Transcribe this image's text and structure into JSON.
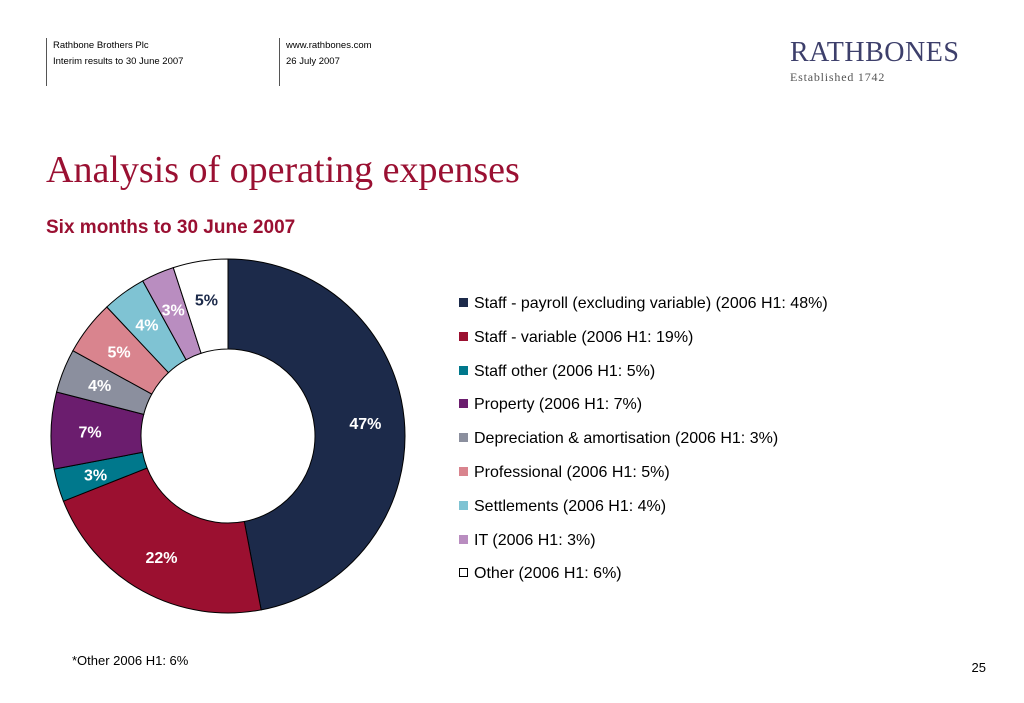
{
  "header": {
    "left_line1": "Rathbone Brothers Plc",
    "left_line2": "Interim results to 30 June 2007",
    "right_line1": "www.rathbones.com",
    "right_line2": "26 July 2007"
  },
  "logo": {
    "main": "RATHBONES",
    "sub": "Established 1742"
  },
  "slide": {
    "title": "Analysis of operating expenses",
    "footnote": "*Other 2006 H1: 6%",
    "page_number": "25"
  },
  "chart_data": {
    "type": "pie",
    "subtype": "donut",
    "title": "Six months to 30 June 2007",
    "legend_position": "right",
    "slices": [
      {
        "label": "Staff - payroll (excluding variable) (2006 H1: 48%)",
        "value": 47,
        "data_label": "47%",
        "color": "#1c2a4a",
        "label_color": "#ffffff"
      },
      {
        "label": "Staff - variable (2006 H1: 19%)",
        "value": 22,
        "data_label": "22%",
        "color": "#9b1030",
        "label_color": "#ffffff"
      },
      {
        "label": "Staff other (2006 H1: 5%)",
        "value": 3,
        "data_label": "3%",
        "color": "#00788c",
        "label_color": "#ffffff"
      },
      {
        "label": "Property (2006 H1: 7%)",
        "value": 7,
        "data_label": "7%",
        "color": "#6b1d6e",
        "label_color": "#ffffff"
      },
      {
        "label": "Depreciation & amortisation (2006 H1: 3%)",
        "value": 4,
        "data_label": "4%",
        "color": "#8b8f9e",
        "label_color": "#ffffff"
      },
      {
        "label": "Professional (2006 H1: 5%)",
        "value": 5,
        "data_label": "5%",
        "color": "#d9848e",
        "label_color": "#ffffff"
      },
      {
        "label": "Settlements (2006 H1: 4%)",
        "value": 4,
        "data_label": "4%",
        "color": "#7fc3d3",
        "label_color": "#ffffff"
      },
      {
        "label": "IT (2006 H1: 3%)",
        "value": 3,
        "data_label": "3%",
        "color": "#b98dc0",
        "label_color": "#ffffff"
      },
      {
        "label": "Other (2006 H1: 6%)",
        "value": 5,
        "data_label": "5%",
        "color": "#ffffff",
        "label_color": "#1c2a4a"
      }
    ]
  }
}
